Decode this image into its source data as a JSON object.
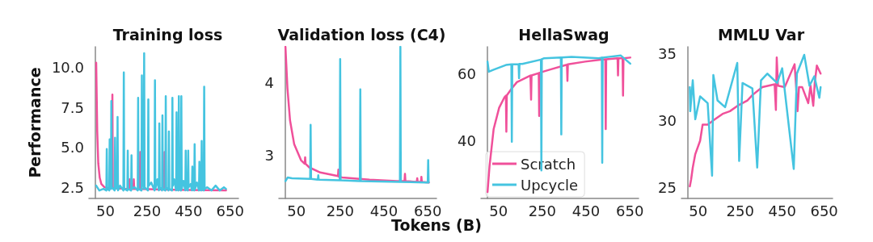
{
  "chart_data": [
    {
      "type": "line",
      "title": "Training loss",
      "ylabel": "Performance",
      "xlim": [
        -30,
        690
      ],
      "xticks": [
        50,
        250,
        450,
        650
      ],
      "ylim": [
        1.8,
        11.3
      ],
      "yticks": [
        2.5,
        {
          "value": 5,
          "label": "5.0"
        },
        7.5,
        {
          "value": 10,
          "label": "10.0"
        }
      ],
      "grid": false,
      "legend": false,
      "series": [
        {
          "color": "#f0509a",
          "x": [
            5,
            10,
            15,
            22,
            30,
            45,
            60,
            81,
            83,
            85,
            150,
            164,
            166,
            168,
            184,
            186,
            188,
            215,
            217,
            219,
            332,
            334,
            336,
            450,
            630
          ],
          "values": [
            10.3,
            6.0,
            4.0,
            3.1,
            2.7,
            2.5,
            2.45,
            2.5,
            8.3,
            2.45,
            2.4,
            2.4,
            3.0,
            2.4,
            2.4,
            3.0,
            2.4,
            2.4,
            4.7,
            2.4,
            2.35,
            4.7,
            2.35,
            2.33,
            2.3
          ]
        },
        {
          "color": "#45c4e0",
          "x": [
            5,
            20,
            40,
            54,
            56,
            58,
            68,
            70,
            72,
            76,
            78,
            80,
            94,
            96,
            98,
            106,
            108,
            110,
            120,
            136,
            138,
            140,
            155,
            157,
            159,
            173,
            175,
            177,
            190,
            205,
            207,
            209,
            223,
            225,
            227,
            234,
            236,
            238,
            254,
            256,
            258,
            270,
            286,
            288,
            290,
            300,
            307,
            309,
            311,
            322,
            324,
            326,
            338,
            340,
            342,
            353,
            355,
            357,
            370,
            372,
            374,
            380,
            390,
            392,
            394,
            401,
            403,
            405,
            413,
            415,
            417,
            425,
            434,
            436,
            438,
            446,
            448,
            450,
            460,
            466,
            468,
            470,
            477,
            479,
            481,
            490,
            500,
            502,
            504,
            511,
            513,
            515,
            523,
            525,
            527,
            540,
            560,
            580,
            600,
            620,
            630
          ],
          "values": [
            2.6,
            2.3,
            2.4,
            2.3,
            4.9,
            2.4,
            2.3,
            5.5,
            2.5,
            2.4,
            7.9,
            2.5,
            2.3,
            5.6,
            2.4,
            2.5,
            6.9,
            2.3,
            2.6,
            2.3,
            9.7,
            2.4,
            2.3,
            4.8,
            2.4,
            2.3,
            4.5,
            2.4,
            2.5,
            2.3,
            8.1,
            2.4,
            2.3,
            9.5,
            3.4,
            2.4,
            10.9,
            2.5,
            2.3,
            8.0,
            2.6,
            2.8,
            2.3,
            9.2,
            2.4,
            3.0,
            2.3,
            6.5,
            2.5,
            2.3,
            7.0,
            2.4,
            2.3,
            8.2,
            2.5,
            2.3,
            6.0,
            2.4,
            2.3,
            8.1,
            2.6,
            3.0,
            2.3,
            7.2,
            2.4,
            2.3,
            8.2,
            2.5,
            2.3,
            8.2,
            2.4,
            2.9,
            2.3,
            4.8,
            2.4,
            2.3,
            4.8,
            2.5,
            2.7,
            2.3,
            3.8,
            2.4,
            2.3,
            5.2,
            2.4,
            2.8,
            2.3,
            4.1,
            2.4,
            2.3,
            5.4,
            2.4,
            2.3,
            8.8,
            2.4,
            2.5,
            2.3,
            2.6,
            2.3,
            2.5,
            2.4
          ]
        }
      ]
    },
    {
      "type": "line",
      "title": "Validation loss (C4)",
      "xlabel": "Tokens (B)",
      "xlim": [
        -30,
        690
      ],
      "xticks": [
        50,
        250,
        450,
        650
      ],
      "ylim": [
        2.4,
        4.5
      ],
      "yticks": [
        3,
        4
      ],
      "grid": false,
      "legend": false,
      "series": [
        {
          "color": "#f0509a",
          "x": [
            0,
            9,
            21,
            40,
            71,
            88,
            90,
            92,
            109,
            159,
            240,
            242,
            244,
            259,
            384,
            509,
            544,
            546,
            548,
            600,
            602,
            604,
            619,
            621,
            623,
            655
          ],
          "values": [
            4.5,
            3.93,
            3.48,
            3.15,
            2.93,
            2.88,
            2.97,
            2.88,
            2.83,
            2.76,
            2.71,
            2.8,
            2.7,
            2.69,
            2.66,
            2.64,
            2.64,
            2.74,
            2.64,
            2.63,
            2.68,
            2.63,
            2.63,
            2.7,
            2.63,
            2.62
          ]
        },
        {
          "color": "#45c4e0",
          "x": [
            0,
            10,
            30,
            113,
            115,
            117,
            148,
            150,
            152,
            248,
            250,
            252,
            340,
            342,
            344,
            523,
            525,
            527,
            640,
            650,
            652,
            654
          ],
          "values": [
            2.64,
            2.69,
            2.68,
            2.67,
            3.42,
            2.67,
            2.66,
            2.72,
            2.66,
            2.65,
            4.33,
            2.65,
            2.64,
            3.91,
            2.64,
            2.63,
            4.5,
            2.63,
            2.62,
            2.62,
            2.93,
            2.62
          ]
        }
      ]
    },
    {
      "type": "line",
      "title": "HellaSwag",
      "xlim": [
        -30,
        690
      ],
      "xticks": [
        50,
        250,
        450,
        650
      ],
      "ylim": [
        23,
        68
      ],
      "yticks": [
        40,
        60
      ],
      "grid": false,
      "legend": "bottom left",
      "series": [
        {
          "name": "Scratch",
          "color": "#f0509a",
          "x": [
            0,
            9,
            28,
            53,
            78,
            84,
            86,
            88,
            109,
            134,
            196,
            198,
            199,
            201,
            234,
            236,
            238,
            284,
            359,
            363,
            365,
            367,
            446,
            509,
            538,
            540,
            542,
            594,
            596,
            598,
            617,
            619,
            621,
            652
          ],
          "values": [
            24.9,
            32.5,
            43.6,
            49.9,
            53.1,
            53.5,
            42.8,
            53.6,
            55.5,
            57.5,
            59.5,
            59.4,
            52.3,
            59.5,
            60.2,
            47.5,
            60.3,
            61.2,
            62.6,
            62.7,
            57.9,
            62.8,
            63.6,
            64.1,
            64.3,
            43.6,
            64.3,
            64.6,
            59.5,
            64.6,
            64.6,
            53.5,
            64.6,
            64.8
          ]
        },
        {
          "name": "Upcycle",
          "color": "#45c4e0",
          "x": [
            0,
            6,
            28,
            84,
            109,
            111,
            113,
            142,
            144,
            146,
            159,
            244,
            246,
            248,
            259,
            335,
            337,
            339,
            384,
            509,
            522,
            524,
            526,
            609,
            652
          ],
          "values": [
            63.6,
            60.6,
            61.2,
            62.6,
            62.8,
            39.8,
            62.8,
            62.8,
            58.7,
            62.9,
            62.9,
            64.2,
            31.3,
            64.3,
            64.6,
            64.8,
            42.0,
            64.8,
            65.0,
            64.6,
            64.8,
            33.6,
            64.8,
            65.4,
            63.0
          ]
        }
      ]
    },
    {
      "type": "line",
      "title": "MMLU Var",
      "xlim": [
        -30,
        690
      ],
      "xticks": [
        50,
        250,
        450,
        650
      ],
      "ylim": [
        24.2,
        35.5
      ],
      "yticks": [
        25,
        30,
        35
      ],
      "grid": false,
      "legend": false,
      "series": [
        {
          "color": "#f0509a",
          "x": [
            10,
            16,
            24,
            36,
            59,
            71,
            95,
            130,
            166,
            201,
            237,
            284,
            308,
            355,
            414,
            420,
            424,
            430,
            462,
            509,
            516,
            523,
            530,
            545,
            574,
            585,
            598,
            605,
            615,
            633
          ],
          "values": [
            25.1,
            25.6,
            26.5,
            27.5,
            28.5,
            29.7,
            29.7,
            30.1,
            30.5,
            30.7,
            31.1,
            31.5,
            31.9,
            32.5,
            32.7,
            30.8,
            34.7,
            32.6,
            32.5,
            34.2,
            32.6,
            30.7,
            32.5,
            32.5,
            31.3,
            32.6,
            31.1,
            32.8,
            34.1,
            33.5
          ]
        },
        {
          "color": "#45c4e0",
          "x": [
            10,
            12,
            24,
            36,
            59,
            95,
            116,
            122,
            142,
            178,
            236,
            245,
            261,
            308,
            331,
            349,
            379,
            426,
            450,
            505,
            520,
            555,
            580,
            603,
            627,
            633
          ],
          "values": [
            32.5,
            30.7,
            33.0,
            30.1,
            31.8,
            31.3,
            25.9,
            33.4,
            31.5,
            31.0,
            34.3,
            27.0,
            32.8,
            32.4,
            26.5,
            33.0,
            33.5,
            32.8,
            33.9,
            26.4,
            33.5,
            34.9,
            32.6,
            33.3,
            31.7,
            32.5
          ]
        }
      ]
    }
  ]
}
